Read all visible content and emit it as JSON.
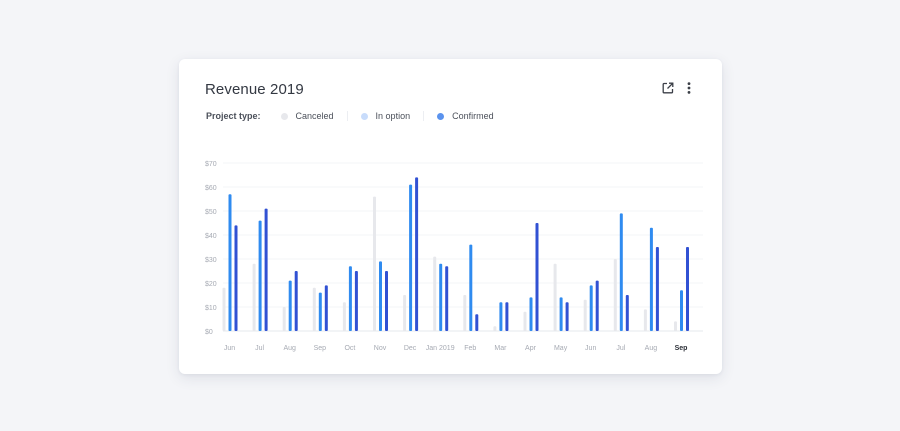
{
  "card": {
    "title": "Revenue 2019",
    "actions": [
      {
        "name": "external-link-icon",
        "glyph": "⧉"
      },
      {
        "name": "more-vertical-icon",
        "glyph": "⋮"
      }
    ]
  },
  "legend": {
    "label": "Project type:",
    "items": [
      {
        "label": "Canceled",
        "color": "#e7e8ec"
      },
      {
        "label": "In option",
        "color": "#c8dcfb"
      },
      {
        "label": "Confirmed",
        "color": "#5b93ee"
      }
    ]
  },
  "chart_data": {
    "type": "bar",
    "title": "Revenue 2019",
    "xlabel": "",
    "ylabel": "",
    "ylim": [
      0,
      70
    ],
    "yticks": [
      "$0",
      "$10",
      "$20",
      "$30",
      "$40",
      "$50",
      "$60",
      "$70"
    ],
    "ytick_values": [
      0,
      10,
      20,
      30,
      40,
      50,
      60,
      70
    ],
    "categories": [
      "Jun",
      "Jul",
      "Aug",
      "Sep",
      "Oct",
      "Nov",
      "Dec",
      "Jan 2019",
      "Feb",
      "Mar",
      "Apr",
      "May",
      "Jun",
      "Jul",
      "Aug",
      "Sep"
    ],
    "highlighted_category": "Sep",
    "series": [
      {
        "name": "Canceled",
        "color": "#e7e8ec",
        "values": [
          18,
          28,
          10,
          18,
          12,
          56,
          15,
          31,
          15,
          2,
          8,
          28,
          13,
          30,
          9,
          4
        ]
      },
      {
        "name": "In option",
        "color": "#2f8bf0",
        "values": [
          57,
          46,
          21,
          16,
          27,
          29,
          61,
          28,
          36,
          12,
          14,
          14,
          19,
          49,
          43,
          17
        ]
      },
      {
        "name": "Confirmed",
        "color": "#3151d3",
        "values": [
          44,
          51,
          25,
          19,
          25,
          25,
          64,
          27,
          7,
          12,
          45,
          12,
          21,
          15,
          35,
          35
        ]
      }
    ]
  }
}
